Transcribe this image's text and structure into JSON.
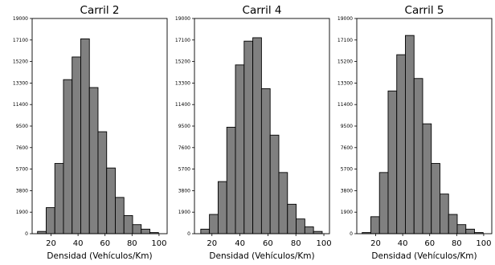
{
  "chart_data": [
    {
      "type": "bar",
      "title": "Carril 2",
      "xlabel": "Densidad (Vehículos/Km)",
      "ylabel": "",
      "xlim": [
        6,
        106
      ],
      "ylim": [
        0,
        19000
      ],
      "xticks": [
        20,
        40,
        60,
        80,
        100
      ],
      "yticks": [
        0,
        1900,
        3800,
        5700,
        7600,
        9500,
        11400,
        13300,
        15200,
        17100,
        19000
      ],
      "bin_width": 6.4,
      "bins_start": [
        10,
        16.4,
        22.8,
        29.2,
        35.6,
        42,
        48.4,
        54.8,
        61.2,
        67.6,
        74,
        80.4,
        86.8,
        93.2
      ],
      "values": [
        200,
        2300,
        6200,
        13600,
        15600,
        17200,
        12900,
        9000,
        5800,
        3200,
        1600,
        800,
        400,
        100
      ],
      "grid": false,
      "color": "#808080",
      "edgecolor": "#000000"
    },
    {
      "type": "bar",
      "title": "Carril 4",
      "xlabel": "Densidad (Vehículos/Km)",
      "ylabel": "",
      "xlim": [
        7.5,
        104
      ],
      "ylim": [
        0,
        19000
      ],
      "xticks": [
        20,
        40,
        60,
        80,
        100
      ],
      "yticks": [
        0,
        1900,
        3800,
        5700,
        7600,
        9500,
        11400,
        13300,
        15200,
        17100,
        19000
      ],
      "bin_width": 6.2,
      "bins_start": [
        12,
        18.2,
        24.4,
        30.6,
        36.8,
        43,
        49.2,
        55.4,
        61.6,
        67.8,
        74,
        80.2,
        86.4,
        92.6
      ],
      "values": [
        400,
        1700,
        4600,
        9400,
        14900,
        17000,
        17300,
        12800,
        8700,
        5400,
        2600,
        1300,
        600,
        200
      ],
      "grid": false,
      "color": "#808080",
      "edgecolor": "#000000"
    },
    {
      "type": "bar",
      "title": "Carril 5",
      "xlabel": "Densidad (Vehículos/Km)",
      "ylabel": "",
      "xlim": [
        6,
        106
      ],
      "ylim": [
        0,
        19000
      ],
      "xticks": [
        20,
        40,
        60,
        80,
        100
      ],
      "yticks": [
        0,
        1900,
        3800,
        5700,
        7600,
        9500,
        11400,
        13300,
        15200,
        17100,
        19000
      ],
      "bin_width": 6.4,
      "bins_start": [
        10,
        16.4,
        22.8,
        29.2,
        35.6,
        42,
        48.4,
        54.8,
        61.2,
        67.6,
        74,
        80.4,
        86.8,
        93.2
      ],
      "values": [
        100,
        1500,
        5400,
        12600,
        15800,
        17500,
        13700,
        9700,
        6200,
        3500,
        1700,
        800,
        400,
        100
      ],
      "grid": false,
      "color": "#808080",
      "edgecolor": "#000000"
    }
  ]
}
